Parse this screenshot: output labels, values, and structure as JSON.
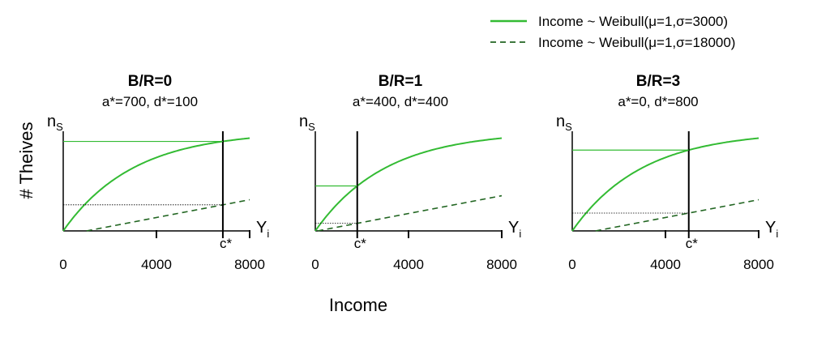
{
  "chart_data": {
    "type": "line",
    "xlabel": "Income",
    "ylabel": "# Theives",
    "x_ticks": [
      "0",
      "4000",
      "8000"
    ],
    "xlim": [
      0,
      8000
    ],
    "y_symbol": "n",
    "y_symbol_sub": "S",
    "x_symbol": "Y",
    "x_symbol_sub": "i",
    "cutoff_label": "c*",
    "legend": {
      "position": "top-right",
      "entries": [
        {
          "label": "Income ~ Weibull(μ=1,σ=3000)",
          "color": "#33bb33",
          "style": "solid"
        },
        {
          "label": "Income ~ Weibull(μ=1,σ=18000)",
          "color": "#226622",
          "style": "dashed"
        }
      ]
    },
    "series": [
      {
        "name": "Income ~ Weibull(μ=1,σ=3000)",
        "function": "ns*(1-exp(-x/3000))"
      },
      {
        "name": "Income ~ Weibull(μ=1,σ=18000)",
        "function": "ns*(1-exp(-x/18000))"
      }
    ],
    "panels": [
      {
        "title": "B/R=0",
        "subtitle": "a*=700, d*=100",
        "cutoff": 6850,
        "dashed_offset": 1000
      },
      {
        "title": "B/R=1",
        "subtitle": "a*=400, d*=400",
        "cutoff": 1800,
        "dashed_offset": 100
      },
      {
        "title": "B/R=3",
        "subtitle": "a*=0, d*=800",
        "cutoff": 5000,
        "dashed_offset": 1000
      }
    ]
  }
}
